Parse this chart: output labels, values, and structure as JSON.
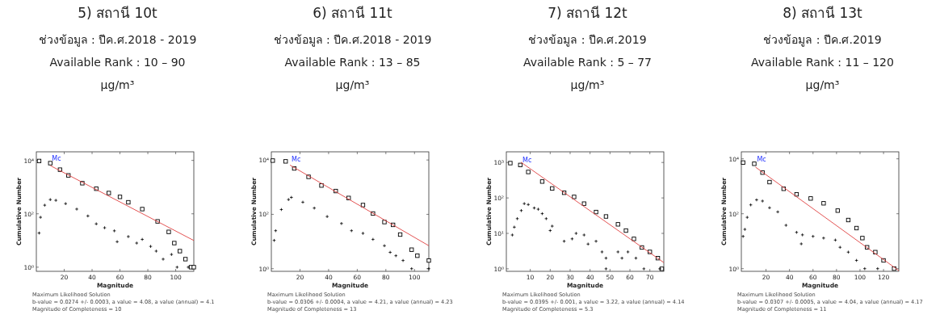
{
  "chart_data": [
    {
      "type": "scatter",
      "title": "5) สถานี 10t",
      "subtitle": "ช่วงข้อมูล : ปีค.ศ.2018 - 2019",
      "xlabel": "Magnitude",
      "ylabel": "Cumulative Number",
      "log": "y",
      "annotations": [
        "Available Rank : 10 – 90",
        "µg/m³",
        "Maximum Likelihood Solution",
        "b-value = 0.0274 +/- 0.0003,  a value = 4.08,  a value (annual) = 4.1",
        "Magnitude of Completeness = 10",
        {
          "text": "Mc",
          "x": 10,
          "y": 7900
        }
      ],
      "xlim": [
        0,
        113
      ],
      "xticks": [
        20,
        40,
        60,
        80,
        100
      ],
      "ylim": [
        0.7,
        21000
      ],
      "yticks": [
        {
          "value": 1,
          "label": "10⁰"
        },
        {
          "value": 100,
          "label": "10²"
        },
        {
          "value": 10000,
          "label": "10⁴"
        }
      ],
      "series": [
        {
          "type": "scatter",
          "marker": "square",
          "color": "#000000",
          "x": [
            2,
            10,
            17,
            23,
            33,
            43,
            52,
            60,
            66,
            76,
            87,
            95,
            99,
            103,
            107,
            111,
            113
          ],
          "values": [
            9500,
            7900,
            4500,
            2750,
            1400,
            870,
            600,
            430,
            270,
            150,
            52,
            21,
            8,
            4,
            2,
            1,
            1
          ]
        },
        {
          "type": "scatter",
          "marker": "cross",
          "color": "#000000",
          "x": [
            2,
            3,
            6,
            10,
            14,
            21,
            29,
            37,
            43,
            49,
            56,
            58,
            66,
            72,
            76,
            82,
            86,
            91,
            97,
            101,
            109
          ],
          "values": [
            19,
            74,
            210,
            340,
            320,
            240,
            150,
            83,
            42,
            30,
            23,
            9,
            14,
            8,
            11,
            6,
            4,
            2,
            3,
            1,
            1
          ]
        },
        {
          "type": "line",
          "color": "#e04040",
          "x": [
            10,
            113
          ],
          "values": [
            6400,
            10
          ]
        }
      ]
    },
    {
      "type": "scatter",
      "title": "6) สถานี 11t",
      "subtitle": "ช่วงข้อมูล : ปีค.ศ.2018 - 2019",
      "xlabel": "Magnitude",
      "ylabel": "Cumulative Number",
      "log": "y",
      "annotations": [
        "Available Rank : 13 – 85",
        "µg/m³",
        "Maximum Likelihood Solution",
        "b-value = 0.0306 +/- 0.0004,  a value = 4.21,  a value (annual) = 4.23",
        "Magnitude of Completeness = 13",
        {
          "text": "Mc",
          "x": 13,
          "y": 7000
        }
      ],
      "xlim": [
        0,
        110
      ],
      "xticks": [
        20,
        40,
        60,
        80,
        100
      ],
      "ylim": [
        0.8,
        20000
      ],
      "yticks": [
        {
          "value": 1,
          "label": "10⁰"
        },
        {
          "value": 100,
          "label": "10²"
        },
        {
          "value": 10000,
          "label": "10⁴"
        }
      ],
      "series": [
        {
          "type": "scatter",
          "marker": "square",
          "color": "#000000",
          "x": [
            1,
            10,
            16,
            26,
            35,
            45,
            54,
            64,
            71,
            79,
            85,
            90,
            98,
            102,
            110
          ],
          "values": [
            9500,
            8900,
            4900,
            2400,
            1150,
            720,
            400,
            220,
            107,
            52,
            41,
            18,
            5,
            3,
            2
          ]
        },
        {
          "type": "scatter",
          "marker": "cross",
          "color": "#000000",
          "x": [
            2,
            3,
            7,
            12,
            14,
            22,
            30,
            39,
            49,
            56,
            64,
            71,
            79,
            83,
            87,
            92,
            98,
            110
          ],
          "values": [
            11,
            25,
            150,
            350,
            420,
            280,
            170,
            83,
            46,
            25,
            20,
            12,
            7,
            4,
            3,
            2,
            1,
            1
          ]
        },
        {
          "type": "line",
          "color": "#e04040",
          "x": [
            13,
            110
          ],
          "values": [
            6500,
            7
          ]
        }
      ]
    },
    {
      "type": "scatter",
      "title": "7) สถานี 12t",
      "subtitle": "ช่วงข้อมูล : ปีค.ศ.2019",
      "xlabel": "Magnitude",
      "ylabel": "Cumulative Number",
      "log": "y",
      "annotations": [
        "Available Rank : 5 – 77",
        "µg/m³",
        "Maximum Likelihood Solution",
        "b-value = 0.0395 +/- 0.001,  a value = 3.22,  a value (annual) = 4.14",
        "Magnitude of Completeness = 5.3",
        {
          "text": "Mc",
          "x": 5.3,
          "y": 850
        }
      ],
      "xlim": [
        -2,
        77
      ],
      "xticks": [
        10,
        20,
        30,
        40,
        50,
        60,
        70
      ],
      "ylim": [
        0.85,
        2000
      ],
      "yticks": [
        {
          "value": 1,
          "label": "10⁰"
        },
        {
          "value": 10,
          "label": "10¹"
        },
        {
          "value": 100,
          "label": "10²"
        },
        {
          "value": 1000,
          "label": "10³"
        }
      ],
      "series": [
        {
          "type": "scatter",
          "marker": "square",
          "color": "#000000",
          "x": [
            0,
            5,
            9,
            16,
            21,
            27,
            32,
            37,
            43,
            48,
            54,
            58,
            62,
            66,
            70,
            74,
            76
          ],
          "values": [
            960,
            850,
            540,
            290,
            185,
            140,
            107,
            69,
            40,
            30,
            18,
            12,
            7,
            4,
            3,
            2,
            1
          ]
        },
        {
          "type": "scatter",
          "marker": "cross",
          "color": "#000000",
          "x": [
            1,
            2,
            3.5,
            5.5,
            7,
            9,
            12,
            14,
            16,
            18,
            20,
            21,
            27,
            31,
            33,
            37,
            39,
            43,
            46,
            48,
            48,
            54,
            56,
            59,
            63,
            67,
            75
          ],
          "values": [
            9,
            15,
            26,
            44,
            69,
            65,
            52,
            48,
            36,
            26,
            12,
            16,
            6,
            7,
            10,
            9,
            5,
            6,
            3,
            2,
            1,
            3,
            2,
            3,
            2,
            1,
            1
          ]
        },
        {
          "type": "line",
          "color": "#e04040",
          "x": [
            5.3,
            77
          ],
          "values": [
            1020,
            1.5
          ]
        }
      ]
    },
    {
      "type": "scatter",
      "title": "8) สถานี 13t",
      "subtitle": "ช่วงข้อมูล : ปีค.ศ.2019",
      "xlabel": "Magnitude",
      "ylabel": "Cumulative Number",
      "log": "y",
      "annotations": [
        "Available Rank : 11 – 120",
        "µg/m³",
        "Maximum Likelihood Solution",
        "b-value = 0.0307 +/- 0.0005,  a value = 4.04,  a value (annual) = 4.17",
        "Magnitude of Completeness = 11",
        {
          "text": "Mc",
          "x": 11,
          "y": 6500
        }
      ],
      "xlim": [
        -1,
        133
      ],
      "xticks": [
        20,
        40,
        60,
        80,
        100,
        120
      ],
      "ylim": [
        0.8,
        18000
      ],
      "yticks": [
        {
          "value": 1,
          "label": "10⁰"
        },
        {
          "value": 100,
          "label": "10²"
        },
        {
          "value": 10000,
          "label": "10⁴"
        }
      ],
      "series": [
        {
          "type": "scatter",
          "marker": "square",
          "color": "#000000",
          "x": [
            0.5,
            10,
            17,
            23,
            35,
            46,
            58,
            69,
            81,
            90,
            97,
            102,
            106,
            113,
            120,
            129
          ],
          "values": [
            7300,
            6600,
            3150,
            1420,
            810,
            510,
            360,
            240,
            130,
            59,
            30,
            13,
            6,
            4,
            2,
            1
          ]
        },
        {
          "type": "scatter",
          "marker": "cross",
          "color": "#000000",
          "x": [
            0.5,
            2,
            4,
            7,
            12,
            17,
            23,
            30,
            37,
            46,
            51,
            50,
            60,
            69,
            79,
            83,
            90,
            97,
            104,
            115
          ],
          "values": [
            15,
            27,
            74,
            210,
            320,
            290,
            165,
            117,
            38,
            21,
            17,
            8,
            15,
            13,
            11,
            6,
            4,
            2,
            1,
            1
          ]
        },
        {
          "type": "line",
          "color": "#e04040",
          "x": [
            11,
            133
          ],
          "values": [
            5000,
            0.85
          ]
        }
      ]
    }
  ]
}
